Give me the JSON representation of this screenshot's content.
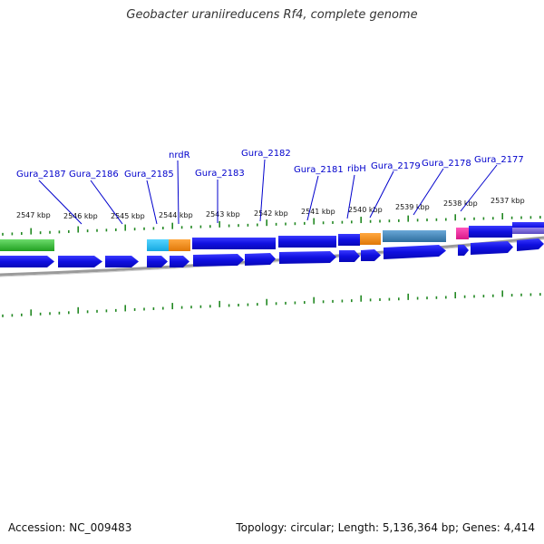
{
  "title": "Geobacter uraniireducens Rf4, complete genome",
  "footer": {
    "accession": "Accession: NC_009483",
    "topology": "Topology: circular; Length: 5,136,364 bp; Genes: 4,414"
  },
  "map": {
    "kbp_ticks": [
      "2547 kbp",
      "2546 kbp",
      "2545 kbp",
      "2544 kbp",
      "2543 kbp",
      "2542 kbp",
      "2541 kbp",
      "2540 kbp",
      "2539 kbp",
      "2538 kbp",
      "2537 kbp"
    ],
    "gene_labels": [
      "Gura_2187",
      "Gura_2186",
      "Gura_2185",
      "nrdR",
      "Gura_2183",
      "Gura_2182",
      "Gura_2181",
      "ribH",
      "Gura_2179",
      "Gura_2178",
      "Gura_2177"
    ]
  },
  "colors": {
    "gene_blue": "#1010e0",
    "green": "#33bb33",
    "cyan": "#22bbee",
    "orange": "#f08a10",
    "steel": "#3a7fb0",
    "magenta": "#ee2299",
    "purple": "#7a6ad8",
    "tick_green": "#228822",
    "label_blue": "#0000cc",
    "backbone": "#888888"
  }
}
